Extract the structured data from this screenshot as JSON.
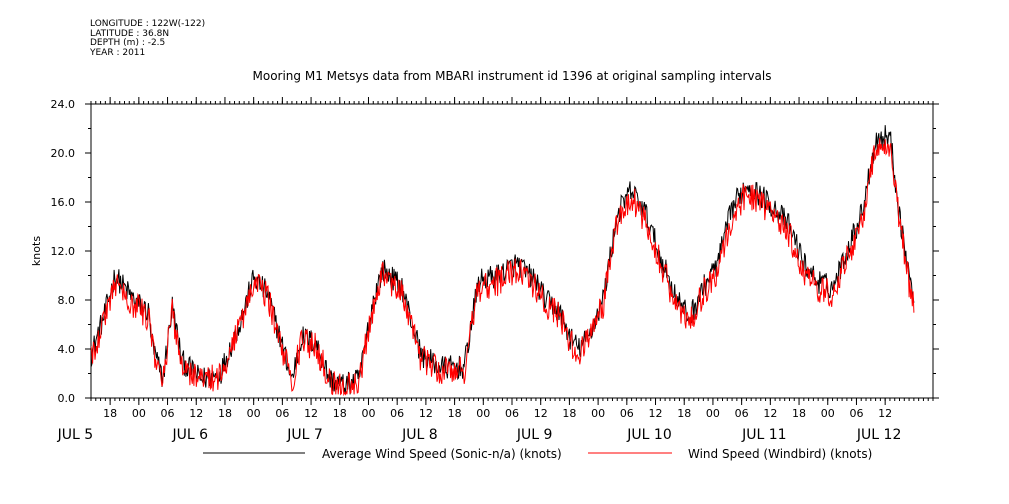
{
  "meta": {
    "longitude": "LONGITUDE : 122W(-122)",
    "latitude": "LATITUDE : 36.8N",
    "depth": "DEPTH (m) : -2.5",
    "year": "YEAR : 2011"
  },
  "chart_data": {
    "type": "line",
    "title": "Mooring M1 Metsys data from MBARI instrument id 1396 at original sampling intervals",
    "ylabel": "knots",
    "xlabel": "",
    "ylim": [
      0,
      24
    ],
    "yticks": [
      "0.0",
      "4.0",
      "8.0",
      "12.0",
      "16.0",
      "20.0",
      "24.0"
    ],
    "xlim_hours": [
      "2011-07-05T14:00",
      "2011-07-12T22:00"
    ],
    "hour_ticks": [
      {
        "t": "2011-07-05T18:00",
        "label": "18"
      },
      {
        "t": "2011-07-06T00:00",
        "label": "00"
      },
      {
        "t": "2011-07-06T06:00",
        "label": "06"
      },
      {
        "t": "2011-07-06T12:00",
        "label": "12"
      },
      {
        "t": "2011-07-06T18:00",
        "label": "18"
      },
      {
        "t": "2011-07-07T00:00",
        "label": "00"
      },
      {
        "t": "2011-07-07T06:00",
        "label": "06"
      },
      {
        "t": "2011-07-07T12:00",
        "label": "12"
      },
      {
        "t": "2011-07-07T18:00",
        "label": "18"
      },
      {
        "t": "2011-07-08T00:00",
        "label": "00"
      },
      {
        "t": "2011-07-08T06:00",
        "label": "06"
      },
      {
        "t": "2011-07-08T12:00",
        "label": "12"
      },
      {
        "t": "2011-07-08T18:00",
        "label": "18"
      },
      {
        "t": "2011-07-09T00:00",
        "label": "00"
      },
      {
        "t": "2011-07-09T06:00",
        "label": "06"
      },
      {
        "t": "2011-07-09T12:00",
        "label": "12"
      },
      {
        "t": "2011-07-09T18:00",
        "label": "18"
      },
      {
        "t": "2011-07-10T00:00",
        "label": "00"
      },
      {
        "t": "2011-07-10T06:00",
        "label": "06"
      },
      {
        "t": "2011-07-10T12:00",
        "label": "12"
      },
      {
        "t": "2011-07-10T18:00",
        "label": "18"
      },
      {
        "t": "2011-07-11T00:00",
        "label": "00"
      },
      {
        "t": "2011-07-11T06:00",
        "label": "06"
      },
      {
        "t": "2011-07-11T12:00",
        "label": "12"
      },
      {
        "t": "2011-07-11T18:00",
        "label": "18"
      },
      {
        "t": "2011-07-12T00:00",
        "label": "00"
      },
      {
        "t": "2011-07-12T06:00",
        "label": "06"
      },
      {
        "t": "2011-07-12T12:00",
        "label": "12"
      }
    ],
    "date_labels": [
      {
        "t": "2011-07-05T12:00",
        "label": "JUL  5"
      },
      {
        "t": "2011-07-06T12:00",
        "label": "JUL  6"
      },
      {
        "t": "2011-07-07T12:00",
        "label": "JUL  7"
      },
      {
        "t": "2011-07-08T12:00",
        "label": "JUL  8"
      },
      {
        "t": "2011-07-09T12:00",
        "label": "JUL  9"
      },
      {
        "t": "2011-07-10T12:00",
        "label": "JUL 10"
      },
      {
        "t": "2011-07-11T12:00",
        "label": "JUL 11"
      },
      {
        "t": "2011-07-12T12:00",
        "label": "JUL 12"
      }
    ],
    "legend_placement": "bottom",
    "grid": false,
    "series": [
      {
        "name": "Average Wind Speed (Sonic-n/a) (knots)",
        "color": "#000000",
        "noise": 1.0,
        "x": [
          "2011-07-05T14:00",
          "2011-07-05T17:00",
          "2011-07-05T19:00",
          "2011-07-05T23:00",
          "2011-07-06T02:00",
          "2011-07-06T03:00",
          "2011-07-06T05:00",
          "2011-07-06T07:00",
          "2011-07-06T09:00",
          "2011-07-06T13:00",
          "2011-07-06T17:00",
          "2011-07-06T21:00",
          "2011-07-07T00:00",
          "2011-07-07T03:00",
          "2011-07-07T04:00",
          "2011-07-07T08:00",
          "2011-07-07T10:00",
          "2011-07-07T13:00",
          "2011-07-07T16:00",
          "2011-07-07T19:00",
          "2011-07-07T22:00",
          "2011-07-08T01:00",
          "2011-07-08T03:00",
          "2011-07-08T07:00",
          "2011-07-08T11:00",
          "2011-07-08T15:00",
          "2011-07-08T17:00",
          "2011-07-08T20:00",
          "2011-07-08T23:00",
          "2011-07-09T03:00",
          "2011-07-09T07:00",
          "2011-07-09T11:00",
          "2011-07-09T13:00",
          "2011-07-09T16:00",
          "2011-07-09T18:00",
          "2011-07-09T20:00",
          "2011-07-09T22:00",
          "2011-07-10T01:00",
          "2011-07-10T04:00",
          "2011-07-10T07:00",
          "2011-07-10T10:00",
          "2011-07-10T13:00",
          "2011-07-10T16:00",
          "2011-07-10T19:00",
          "2011-07-10T22:00",
          "2011-07-11T01:00",
          "2011-07-11T04:00",
          "2011-07-11T07:00",
          "2011-07-11T10:00",
          "2011-07-11T13:00",
          "2011-07-11T16:00",
          "2011-07-11T19:00",
          "2011-07-11T22:00",
          "2011-07-12T01:00",
          "2011-07-12T04:00",
          "2011-07-12T07:00",
          "2011-07-12T10:00",
          "2011-07-12T13:00",
          "2011-07-12T15:00",
          "2011-07-12T17:00",
          "2011-07-12T18:00"
        ],
        "y": [
          3.5,
          7.0,
          10.0,
          8.0,
          7.0,
          4.0,
          1.5,
          7.5,
          3.0,
          1.5,
          2.0,
          6.0,
          9.8,
          8.5,
          7.0,
          1.5,
          5.0,
          4.5,
          1.5,
          1.0,
          1.5,
          8.0,
          10.5,
          9.0,
          3.5,
          2.5,
          2.5,
          2.5,
          9.5,
          10.0,
          11.0,
          9.5,
          8.0,
          7.0,
          5.0,
          4.0,
          5.0,
          8.0,
          15.0,
          17.0,
          15.0,
          11.5,
          8.5,
          6.5,
          9.0,
          11.0,
          15.5,
          17.5,
          16.5,
          15.5,
          14.0,
          11.0,
          9.5,
          9.0,
          12.0,
          15.0,
          21.0,
          21.5,
          15.0,
          10.0,
          8.0
        ]
      },
      {
        "name": "Wind Speed (Windbird) (knots)",
        "color": "#ff0000",
        "noise": 1.2,
        "x": [
          "2011-07-05T14:00",
          "2011-07-05T17:00",
          "2011-07-05T19:00",
          "2011-07-05T23:00",
          "2011-07-06T02:00",
          "2011-07-06T03:00",
          "2011-07-06T05:00",
          "2011-07-06T07:00",
          "2011-07-06T09:00",
          "2011-07-06T13:00",
          "2011-07-06T17:00",
          "2011-07-06T21:00",
          "2011-07-07T00:00",
          "2011-07-07T03:00",
          "2011-07-07T04:00",
          "2011-07-07T08:00",
          "2011-07-07T10:00",
          "2011-07-07T13:00",
          "2011-07-07T16:00",
          "2011-07-07T19:00",
          "2011-07-07T22:00",
          "2011-07-08T01:00",
          "2011-07-08T03:00",
          "2011-07-08T07:00",
          "2011-07-08T11:00",
          "2011-07-08T15:00",
          "2011-07-08T17:00",
          "2011-07-08T20:00",
          "2011-07-08T23:00",
          "2011-07-09T03:00",
          "2011-07-09T07:00",
          "2011-07-09T11:00",
          "2011-07-09T13:00",
          "2011-07-09T16:00",
          "2011-07-09T18:00",
          "2011-07-09T20:00",
          "2011-07-09T22:00",
          "2011-07-10T01:00",
          "2011-07-10T04:00",
          "2011-07-10T07:00",
          "2011-07-10T10:00",
          "2011-07-10T13:00",
          "2011-07-10T16:00",
          "2011-07-10T19:00",
          "2011-07-10T22:00",
          "2011-07-11T01:00",
          "2011-07-11T04:00",
          "2011-07-11T07:00",
          "2011-07-11T10:00",
          "2011-07-11T13:00",
          "2011-07-11T16:00",
          "2011-07-11T19:00",
          "2011-07-11T22:00",
          "2011-07-12T01:00",
          "2011-07-12T04:00",
          "2011-07-12T07:00",
          "2011-07-12T10:00",
          "2011-07-12T13:00",
          "2011-07-12T15:00",
          "2011-07-12T17:00",
          "2011-07-12T18:00"
        ],
        "y": [
          3.3,
          6.7,
          9.5,
          7.6,
          6.6,
          3.8,
          1.3,
          7.0,
          2.8,
          1.3,
          1.8,
          5.7,
          9.4,
          8.2,
          6.7,
          1.3,
          4.7,
          4.2,
          1.3,
          0.8,
          1.3,
          7.6,
          10.0,
          8.6,
          3.2,
          2.3,
          2.3,
          2.3,
          9.0,
          9.5,
          10.5,
          9.0,
          7.6,
          6.6,
          4.7,
          3.7,
          4.7,
          7.6,
          14.3,
          16.4,
          14.4,
          11.0,
          8.0,
          6.1,
          8.6,
          10.5,
          14.9,
          16.8,
          15.8,
          14.8,
          13.3,
          10.4,
          9.0,
          8.5,
          11.4,
          14.3,
          20.2,
          20.8,
          14.3,
          9.4,
          7.6
        ]
      }
    ]
  }
}
